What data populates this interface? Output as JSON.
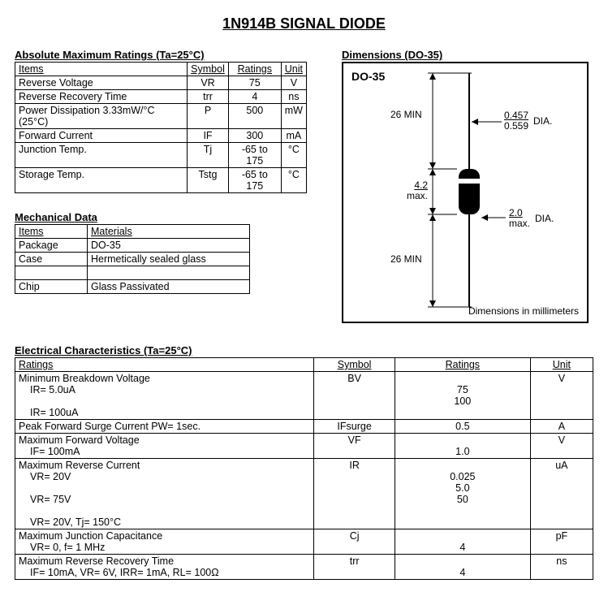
{
  "title": "1N914B SIGNAL DIODE",
  "abs": {
    "heading": "Absolute Maximum Ratings (Ta=25°C)",
    "headers": [
      "Items",
      "Symbol",
      "Ratings",
      "Unit"
    ],
    "rows": [
      {
        "item": "Reverse Voltage",
        "sym": "VR",
        "rat": "75",
        "unit": "V"
      },
      {
        "item": "Reverse Recovery Time",
        "sym": "trr",
        "rat": "4",
        "unit": "ns"
      },
      {
        "item": "Power Dissipation 3.33mW/°C (25°C)",
        "sym": "P",
        "rat": "500",
        "unit": "mW"
      },
      {
        "item": "Forward Current",
        "sym": "IF",
        "rat": "300",
        "unit": "mA"
      },
      {
        "item": "Junction Temp.",
        "sym": "Tj",
        "rat": "-65 to 175",
        "unit": "°C"
      },
      {
        "item": "Storage Temp.",
        "sym": "Tstg",
        "rat": "-65 to 175",
        "unit": "°C"
      }
    ]
  },
  "mech": {
    "heading": "Mechanical Data",
    "headers": [
      "Items",
      "Materials"
    ],
    "rows": [
      {
        "item": "Package",
        "mat": "DO-35"
      },
      {
        "item": "Case",
        "mat": "Hermetically sealed glass"
      },
      {
        "item": "",
        "mat": ""
      },
      {
        "item": "Chip",
        "mat": "Glass Passivated"
      }
    ]
  },
  "dims": {
    "heading": "Dimensions (DO-35)",
    "label": "DO-35",
    "lead_len": "26 MIN",
    "body_len": "4.2",
    "body_len_sub": "max.",
    "lead_dia_top": "0.457",
    "lead_dia_bot": "0.559",
    "body_dia_top": "2.0",
    "body_dia_bot": "max.",
    "dia_label": "DIA.",
    "footer": "Dimensions in millimeters"
  },
  "elec": {
    "heading": "Electrical Characteristics (Ta=25°C)",
    "headers": [
      "Ratings",
      "Symbol",
      "Ratings",
      "Unit"
    ],
    "rows": [
      {
        "label": "Minimum Breakdown Voltage",
        "subs": [
          "IR= 5.0uA",
          "IR= 100uA"
        ],
        "sym": "BV",
        "rats": [
          "",
          "75",
          "100"
        ],
        "unit": "V"
      },
      {
        "label": "Peak Forward Surge Current PW= 1sec.",
        "subs": [],
        "sym": "IFsurge",
        "rats": [
          "0.5"
        ],
        "unit": "A"
      },
      {
        "label": "Maximum Forward Voltage",
        "subs": [
          "IF= 100mA"
        ],
        "sym": "VF",
        "rats": [
          "",
          "1.0"
        ],
        "unit": "V"
      },
      {
        "label": "Maximum Reverse Current",
        "subs": [
          "VR= 20V",
          "VR= 75V",
          "VR= 20V, Tj= 150°C"
        ],
        "sym": "IR",
        "rats": [
          "",
          "0.025",
          "5.0",
          "50"
        ],
        "unit": "uA"
      },
      {
        "label": "Maximum Junction Capacitance",
        "subs": [
          "VR= 0, f= 1 MHz"
        ],
        "sym": "Cj",
        "rats": [
          "",
          "4"
        ],
        "unit": "pF"
      },
      {
        "label": "Maximum Reverse Recovery Time",
        "subs": [
          "IF= 10mA, VR= 6V, IRR= 1mA, RL= 100Ω"
        ],
        "sym": "trr",
        "rats": [
          "",
          "4"
        ],
        "unit": "ns"
      }
    ]
  }
}
